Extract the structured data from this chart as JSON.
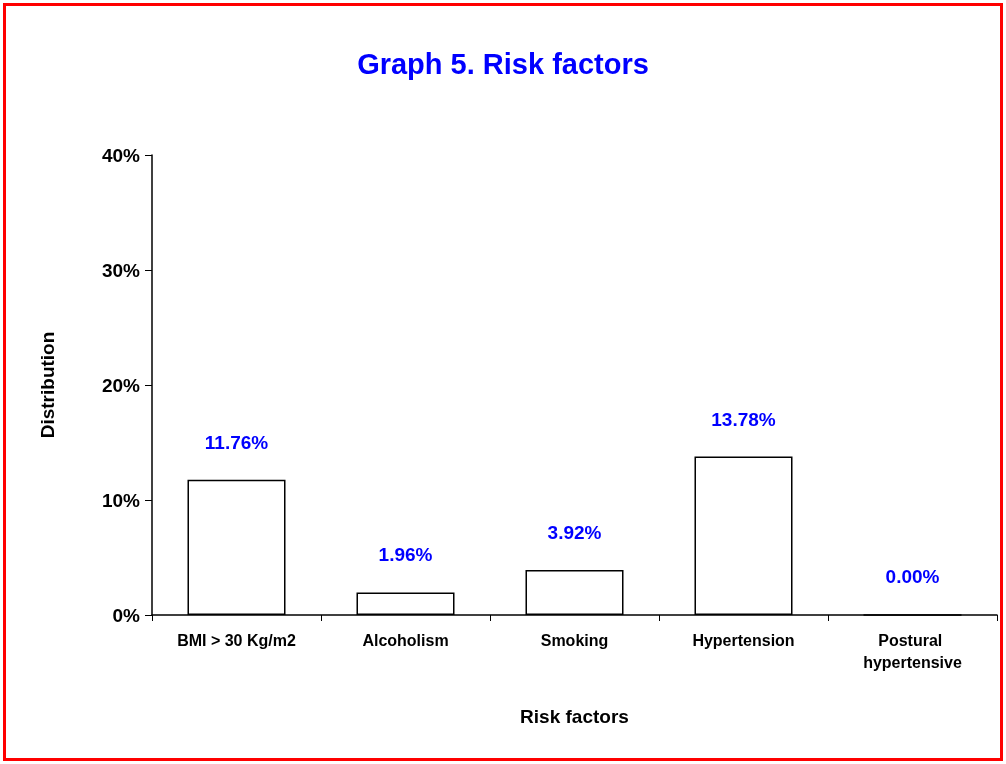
{
  "chart_data": {
    "type": "bar",
    "title": "Graph 5. Risk factors",
    "xlabel": "Risk factors",
    "ylabel": "Distribution",
    "categories": [
      "BMI > 30 Kg/m2",
      "Alcoholism",
      "Smoking",
      "Hypertension",
      "Postural hypertensive"
    ],
    "series": [
      {
        "color": "#ffffff",
        "values": [
          11.76,
          1.96,
          3.92,
          13.78,
          0
        ],
        "value_labels": [
          "11.76%",
          "1.96%",
          "3.92%",
          "13.78%",
          "0.00%"
        ]
      }
    ],
    "ylim": [
      0,
      40
    ],
    "yticks": [
      {
        "value": 0,
        "label": "0%"
      },
      {
        "value": 10,
        "label": "10%"
      },
      {
        "value": 20,
        "label": "20%"
      },
      {
        "value": 30,
        "label": "30%"
      },
      {
        "value": 40,
        "label": "40%"
      }
    ],
    "grid": false
  }
}
